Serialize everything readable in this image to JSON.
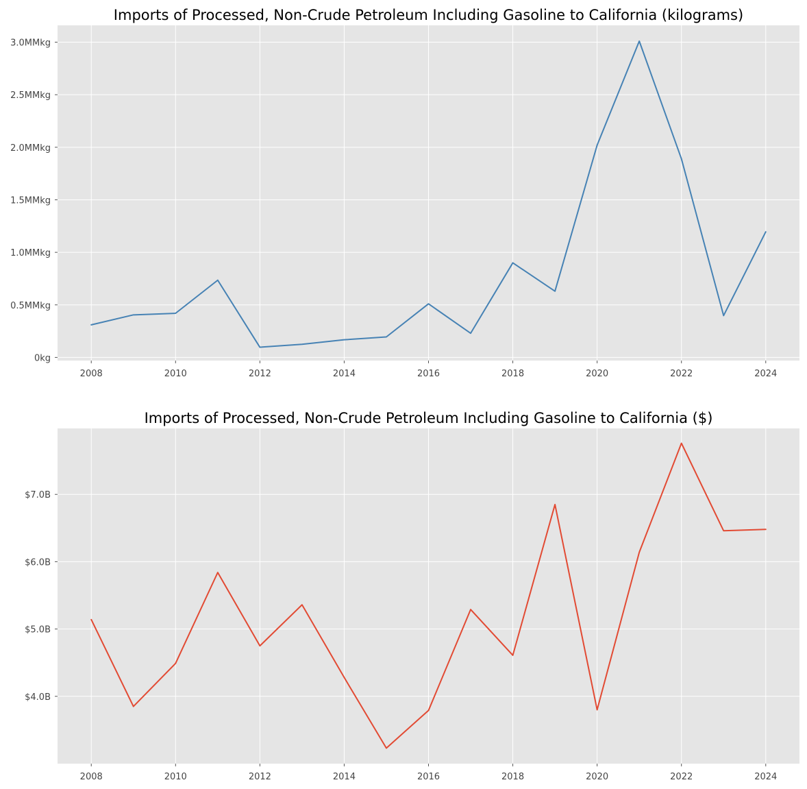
{
  "chart_data": [
    {
      "type": "line",
      "title": "Imports of Processed, Non-Crude Petroleum Including Gasoline to California (kilograms)",
      "xlabel": "",
      "ylabel": "",
      "x": [
        2008,
        2009,
        2010,
        2011,
        2012,
        2013,
        2014,
        2015,
        2016,
        2017,
        2018,
        2019,
        2020,
        2021,
        2022,
        2023,
        2024
      ],
      "series": [
        {
          "values": [
            310000,
            405000,
            420000,
            735000,
            97000,
            125000,
            168000,
            195000,
            510000,
            230000,
            900000,
            630000,
            2020000,
            3010000,
            1890000,
            398000,
            1195000
          ],
          "color": "#4682b4"
        }
      ],
      "xlim": [
        2007.2,
        2024.8
      ],
      "ylim": [
        -30000,
        3160000
      ],
      "xticks": [
        2008,
        2010,
        2012,
        2014,
        2016,
        2018,
        2020,
        2022,
        2024
      ],
      "xtick_labels": [
        "2008",
        "2010",
        "2012",
        "2014",
        "2016",
        "2018",
        "2020",
        "2022",
        "2024"
      ],
      "yticks": [
        0,
        500000,
        1000000,
        1500000,
        2000000,
        2500000,
        3000000
      ],
      "ytick_labels": [
        "0kg",
        "0.5MMkg",
        "1.0MMkg",
        "1.5MMkg",
        "2.0MMkg",
        "2.5MMkg",
        "3.0MMkg"
      ],
      "grid": true,
      "legend": "none"
    },
    {
      "type": "line",
      "title": "Imports of Processed, Non-Crude Petroleum Including Gasoline to California ($)",
      "xlabel": "",
      "ylabel": "",
      "x": [
        2008,
        2009,
        2010,
        2011,
        2012,
        2013,
        2014,
        2015,
        2016,
        2017,
        2018,
        2019,
        2020,
        2021,
        2022,
        2023,
        2024
      ],
      "series": [
        {
          "values": [
            5.14,
            3.85,
            4.49,
            5.84,
            4.75,
            5.36,
            4.28,
            3.23,
            3.79,
            5.29,
            4.61,
            6.85,
            3.8,
            6.14,
            7.76,
            6.46,
            6.48
          ],
          "color": "#e24a33"
        }
      ],
      "xlim": [
        2007.2,
        2024.8
      ],
      "ylim": [
        3.0,
        7.98
      ],
      "xticks": [
        2008,
        2010,
        2012,
        2014,
        2016,
        2018,
        2020,
        2022,
        2024
      ],
      "xtick_labels": [
        "2008",
        "2010",
        "2012",
        "2014",
        "2016",
        "2018",
        "2020",
        "2022",
        "2024"
      ],
      "yticks": [
        4,
        5,
        6,
        7
      ],
      "ytick_labels": [
        "$4.0B",
        "$5.0B",
        "$6.0B",
        "$7.0B"
      ],
      "grid": true,
      "legend": "none"
    }
  ]
}
